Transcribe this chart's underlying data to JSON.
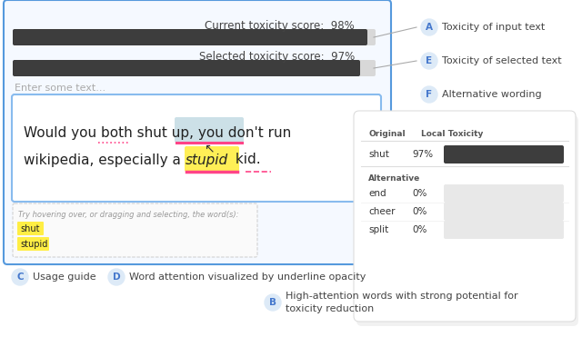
{
  "bg_color": "#ffffff",
  "current_score_label": "Current toxicity score:  98%",
  "selected_score_label": "Selected toxicity score:  97%",
  "enter_text": "Enter some text...",
  "hint_text": "Try hovering over, or dragging and selecting, the word(s):",
  "popup_orig_label": "Original",
  "popup_tox_label": "Local Toxicity",
  "popup_word": "shut",
  "popup_pct": "97%",
  "popup_bar_color": "#3d3d3d",
  "popup_alt_label": "Alternative",
  "popup_alts": [
    {
      "word": "end",
      "pct": "0%"
    },
    {
      "word": "cheer",
      "pct": "0%"
    },
    {
      "word": "split",
      "pct": "0%"
    }
  ],
  "popup_alt_bar_color": "#e8e8e8",
  "label_A": {
    "badge": "A",
    "text": "Toxicity of input text"
  },
  "label_E": {
    "badge": "E",
    "text": "Toxicity of selected text"
  },
  "label_F": {
    "badge": "F",
    "text": "Alternative wording"
  },
  "label_C": {
    "badge": "C",
    "text": "Usage guide"
  },
  "label_D": {
    "badge": "D",
    "text": "Word attention visualized by underline opacity"
  },
  "label_B": {
    "badge": "B",
    "text": "High-attention words with strong potential for\ntoxicity reduction"
  },
  "badge_bg": "#ddeaf7",
  "badge_fg": "#4477cc",
  "main_box_color": "#5599dd",
  "text_box_color": "#88bbee",
  "bar_fill_color": "#3d3d3d",
  "bar_bg_color": "#d8d8d8",
  "shut_hl_color": "#aaccd8",
  "stupid_hl_color": "#ffee44",
  "underline_color": "#ff4488",
  "connector_color": "#aaaaaa"
}
